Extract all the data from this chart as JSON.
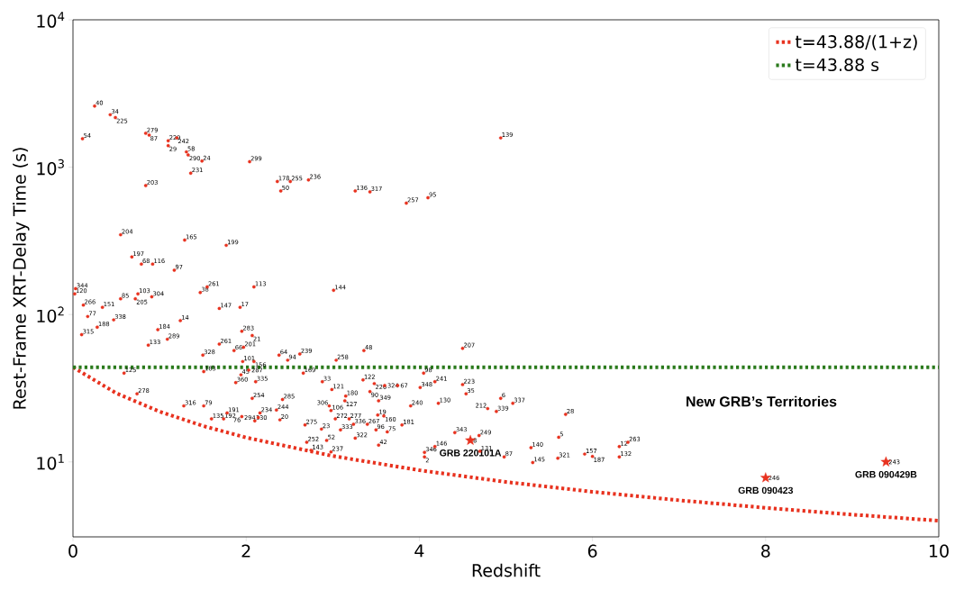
{
  "chart_data": {
    "type": "scatter",
    "xlabel": "Redshift",
    "ylabel": "Rest-Frame XRT-Delay Time (s)",
    "xlim": [
      0,
      10
    ],
    "ylim": [
      3.1,
      10000
    ],
    "log": "y",
    "xticks": [
      0,
      2,
      4,
      6,
      8,
      10
    ],
    "yticks": [
      {
        "value": 10,
        "label": "10$^{1}$"
      },
      {
        "value": 100,
        "label": "10$^{2}$"
      },
      {
        "value": 1000,
        "label": "10$^{3}$"
      },
      {
        "value": 10000,
        "label": "10$^{4}$"
      }
    ],
    "legend": "top right",
    "series": [
      {
        "type": "line",
        "name": "t=43.88/(1+z)",
        "color": "#e8321f",
        "line_style": "dotted",
        "marker": "none",
        "x": [
          0,
          0.5,
          1,
          1.5,
          2,
          3,
          4,
          5,
          6,
          7,
          8,
          9,
          10
        ],
        "values": [
          43.88,
          29.25,
          21.94,
          17.55,
          14.63,
          10.97,
          8.78,
          7.31,
          6.27,
          5.49,
          4.88,
          4.39,
          3.99
        ]
      },
      {
        "type": "line",
        "name": "t=43.88 s",
        "color": "#2a7a1c",
        "line_style": "dotted",
        "marker": "none",
        "x": [
          0,
          10
        ],
        "values": [
          43.88,
          43.88
        ]
      },
      {
        "color": "#e8321f",
        "marker": "circle",
        "x": [
          0.25,
          0.43,
          0.49,
          0.11,
          0.84,
          0.88,
          1.1,
          1.2,
          1.1,
          1.31,
          1.33,
          1.49,
          1.36,
          2.04,
          0.84,
          2.36,
          2.51,
          2.72,
          2.4,
          3.26,
          3.43,
          3.85,
          4.1,
          4.94,
          0.55,
          1.29,
          1.77,
          0.68,
          0.79,
          0.92,
          1.17,
          1.55,
          1.47,
          2.09,
          3.01,
          0.03,
          0.02,
          0.55,
          0.75,
          0.72,
          0.91,
          0.12,
          1.69,
          1.93,
          0.34,
          0.98,
          1.24,
          1.95,
          2.07,
          0.17,
          1.69,
          1.86,
          1.97,
          2.62,
          3.36,
          4.5,
          3.04,
          4.05,
          4.18,
          4.01,
          4.5,
          4.54,
          4.94,
          5.08,
          5.69,
          4.22,
          3.9,
          4.89,
          4.79,
          4.41,
          4.69,
          4.18,
          4.7,
          4.06,
          4.06,
          4.98,
          5.29,
          5.31,
          5.61,
          5.6,
          5.91,
          6.0,
          6.31,
          6.41,
          6.31,
          3.53,
          2.93,
          2.7,
          3.26,
          2.75,
          2.98,
          3.09,
          3.5,
          3.63,
          3.4,
          3.24,
          3.19,
          3.03,
          2.98,
          2.96,
          2.35,
          2.16,
          2.1,
          2.14,
          1.78,
          1.6,
          1.74,
          1.95,
          1.28,
          1.51,
          0.74,
          0.59,
          0.1,
          0.28,
          0.47,
          0.87,
          1.09,
          1.5,
          1.51,
          2.48,
          2.38,
          2.66,
          2.88,
          2.99,
          3.15,
          3.14,
          3.35,
          3.48,
          3.43,
          3.6,
          3.75,
          3.53,
          1.88,
          2.11,
          1.94,
          2.03,
          1.96,
          2.09,
          2.07,
          2.42,
          3.52,
          3.59,
          3.8,
          2.87,
          2.68,
          2.39
        ],
        "values": [
          2600,
          2270,
          2170,
          1560,
          1700,
          1650,
          1510,
          1580,
          1400,
          1270,
          1210,
          1100,
          910,
          1090,
          750,
          800,
          800,
          820,
          690,
          690,
          680,
          570,
          620,
          1580,
          348,
          320,
          295,
          246,
          220,
          220,
          200,
          154,
          141,
          154,
          146,
          150,
          138,
          128,
          138,
          128,
          132,
          116,
          110,
          112,
          112,
          79,
          91,
          77,
          72,
          97,
          63,
          57,
          60,
          54,
          57,
          59,
          49,
          40,
          35,
          32,
          33.5,
          29,
          27,
          25,
          21,
          25,
          24,
          22,
          23,
          15.8,
          15.1,
          12.7,
          11.8,
          11.6,
          10.8,
          10.8,
          12.5,
          9.9,
          14.7,
          10.6,
          11.3,
          10.9,
          12.7,
          13.6,
          10.8,
          13.0,
          14.0,
          13.6,
          14.5,
          12.0,
          11.7,
          16.5,
          16.5,
          16.0,
          18.0,
          18.0,
          19.6,
          19.6,
          22.3,
          24,
          22.5,
          21.5,
          19.0,
          20,
          21.5,
          19.6,
          19.6,
          20.3,
          24,
          24,
          29,
          40,
          73,
          82,
          92,
          62,
          68,
          53,
          41,
          49,
          53,
          40,
          35,
          31,
          28,
          26,
          36,
          34,
          30,
          33,
          33,
          26,
          34.5,
          35,
          39,
          42,
          48,
          48,
          27,
          26.5,
          20.8,
          20.5,
          17.8,
          16.7,
          17.8,
          19.3
        ]
      },
      {
        "color": "#e8321f",
        "marker": "star",
        "x": [
          4.59,
          8.0,
          9.39
        ],
        "values": [
          14.0,
          7.8,
          10.0
        ]
      }
    ],
    "annotations": [
      {
        "text": "40",
        "x": 0.25,
        "y": 2600
      },
      {
        "text": "34",
        "x": 0.43,
        "y": 2270
      },
      {
        "text": "225",
        "x": 0.49,
        "y": 2170
      },
      {
        "text": "54",
        "x": 0.11,
        "y": 1560
      },
      {
        "text": "279",
        "x": 0.84,
        "y": 1700
      },
      {
        "text": "87",
        "x": 0.88,
        "y": 1650
      },
      {
        "text": "229",
        "x": 1.1,
        "y": 1510
      },
      {
        "text": "242",
        "x": 1.2,
        "y": 1580
      },
      {
        "text": "29",
        "x": 1.1,
        "y": 1400
      },
      {
        "text": "58",
        "x": 1.31,
        "y": 1270
      },
      {
        "text": "290",
        "x": 1.33,
        "y": 1210
      },
      {
        "text": "24",
        "x": 1.49,
        "y": 1100
      },
      {
        "text": "231",
        "x": 1.36,
        "y": 910
      },
      {
        "text": "299",
        "x": 2.04,
        "y": 1090
      },
      {
        "text": "203",
        "x": 0.84,
        "y": 750
      },
      {
        "text": "178",
        "x": 2.36,
        "y": 800
      },
      {
        "text": "255",
        "x": 2.51,
        "y": 800
      },
      {
        "text": "236",
        "x": 2.72,
        "y": 820
      },
      {
        "text": "50",
        "x": 2.4,
        "y": 690
      },
      {
        "text": "136",
        "x": 3.26,
        "y": 690
      },
      {
        "text": "317",
        "x": 3.43,
        "y": 680
      },
      {
        "text": "257",
        "x": 3.85,
        "y": 570
      },
      {
        "text": "95",
        "x": 4.1,
        "y": 620
      },
      {
        "text": "139",
        "x": 4.94,
        "y": 1580
      },
      {
        "text": "204",
        "x": 0.55,
        "y": 348
      },
      {
        "text": "165",
        "x": 1.29,
        "y": 320
      },
      {
        "text": "199",
        "x": 1.77,
        "y": 295
      },
      {
        "text": "197",
        "x": 0.68,
        "y": 246
      },
      {
        "text": "68",
        "x": 0.79,
        "y": 220
      },
      {
        "text": "116",
        "x": 0.92,
        "y": 220
      },
      {
        "text": "97",
        "x": 1.17,
        "y": 200
      },
      {
        "text": "261",
        "x": 1.55,
        "y": 154
      },
      {
        "text": "38",
        "x": 1.47,
        "y": 141
      },
      {
        "text": "113",
        "x": 2.09,
        "y": 154
      },
      {
        "text": "144",
        "x": 3.01,
        "y": 146
      },
      {
        "text": "344",
        "x": 0.03,
        "y": 150
      },
      {
        "text": "120",
        "x": 0.02,
        "y": 138
      },
      {
        "text": "85",
        "x": 0.55,
        "y": 128
      },
      {
        "text": "103",
        "x": 0.75,
        "y": 138
      },
      {
        "text": "205",
        "x": 0.72,
        "y": 128
      },
      {
        "text": "304",
        "x": 0.91,
        "y": 132
      },
      {
        "text": "266",
        "x": 0.12,
        "y": 116
      },
      {
        "text": "147",
        "x": 1.69,
        "y": 110
      },
      {
        "text": "17",
        "x": 1.93,
        "y": 112
      },
      {
        "text": "151",
        "x": 0.34,
        "y": 112
      },
      {
        "text": "184",
        "x": 0.98,
        "y": 79
      },
      {
        "text": "14",
        "x": 1.24,
        "y": 91
      },
      {
        "text": "283",
        "x": 1.95,
        "y": 77
      },
      {
        "text": "21",
        "x": 2.07,
        "y": 72
      },
      {
        "text": "77",
        "x": 0.17,
        "y": 97
      },
      {
        "text": "261",
        "x": 1.69,
        "y": 63
      },
      {
        "text": "66",
        "x": 1.86,
        "y": 57
      },
      {
        "text": "201",
        "x": 1.97,
        "y": 60
      },
      {
        "text": "239",
        "x": 2.62,
        "y": 54
      },
      {
        "text": "48",
        "x": 3.36,
        "y": 57
      },
      {
        "text": "207",
        "x": 4.5,
        "y": 59
      },
      {
        "text": "258",
        "x": 3.04,
        "y": 49
      },
      {
        "text": "98",
        "x": 4.05,
        "y": 40
      },
      {
        "text": "241",
        "x": 4.18,
        "y": 35
      },
      {
        "text": "348",
        "x": 4.01,
        "y": 32
      },
      {
        "text": "223",
        "x": 4.5,
        "y": 33.5
      },
      {
        "text": "35",
        "x": 4.54,
        "y": 29
      },
      {
        "text": "6",
        "x": 4.94,
        "y": 27
      },
      {
        "text": "337",
        "x": 5.08,
        "y": 25
      },
      {
        "text": "28",
        "x": 5.69,
        "y": 21
      },
      {
        "text": "130",
        "x": 4.22,
        "y": 25
      },
      {
        "text": "240",
        "x": 3.9,
        "y": 24
      },
      {
        "text": "339",
        "x": 4.89,
        "y": 22
      },
      {
        "text": "212",
        "x": 4.79,
        "y": 23
      },
      {
        "text": "343",
        "x": 4.41,
        "y": 15.8
      },
      {
        "text": "249",
        "x": 4.69,
        "y": 15.1
      },
      {
        "text": "146",
        "x": 4.18,
        "y": 12.7
      },
      {
        "text": "131",
        "x": 4.7,
        "y": 11.8
      },
      {
        "text": "346",
        "x": 4.06,
        "y": 11.6
      },
      {
        "text": "2",
        "x": 4.06,
        "y": 10.8
      },
      {
        "text": "87",
        "x": 4.98,
        "y": 10.8
      },
      {
        "text": "140",
        "x": 5.29,
        "y": 12.5
      },
      {
        "text": "145",
        "x": 5.31,
        "y": 9.9
      },
      {
        "text": "5",
        "x": 5.61,
        "y": 14.7
      },
      {
        "text": "321",
        "x": 5.6,
        "y": 10.6
      },
      {
        "text": "157",
        "x": 5.91,
        "y": 11.3
      },
      {
        "text": "187",
        "x": 6.0,
        "y": 10.9
      },
      {
        "text": "12",
        "x": 6.31,
        "y": 12.7
      },
      {
        "text": "263",
        "x": 6.41,
        "y": 13.6
      },
      {
        "text": "132",
        "x": 6.31,
        "y": 10.8
      },
      {
        "text": "42",
        "x": 3.53,
        "y": 13.0
      },
      {
        "text": "52",
        "x": 2.93,
        "y": 14.0
      },
      {
        "text": "252",
        "x": 2.7,
        "y": 13.6
      },
      {
        "text": "322",
        "x": 3.26,
        "y": 14.5
      },
      {
        "text": "143",
        "x": 2.75,
        "y": 12.0
      },
      {
        "text": "237",
        "x": 2.98,
        "y": 11.7
      },
      {
        "text": "333",
        "x": 3.09,
        "y": 16.5
      },
      {
        "text": "96",
        "x": 3.5,
        "y": 16.5
      },
      {
        "text": "75",
        "x": 3.63,
        "y": 16.0
      },
      {
        "text": "267",
        "x": 3.4,
        "y": 18.0
      },
      {
        "text": "336",
        "x": 3.24,
        "y": 18.0
      },
      {
        "text": "277",
        "x": 3.19,
        "y": 19.6
      },
      {
        "text": "272",
        "x": 3.03,
        "y": 19.6
      },
      {
        "text": "106",
        "x": 2.98,
        "y": 22.3
      },
      {
        "text": "306",
        "x": 2.96,
        "y": 24
      },
      {
        "text": "244",
        "x": 2.35,
        "y": 22.5
      },
      {
        "text": "234",
        "x": 2.16,
        "y": 21.5
      },
      {
        "text": "330",
        "x": 2.1,
        "y": 19.0
      },
      {
        "text": "294",
        "x": 2.14,
        "y": 20
      },
      {
        "text": "191",
        "x": 1.78,
        "y": 21.5
      },
      {
        "text": "135",
        "x": 1.6,
        "y": 19.6
      },
      {
        "text": "192",
        "x": 1.74,
        "y": 19.6
      },
      {
        "text": "76",
        "x": 1.95,
        "y": 20.3
      },
      {
        "text": "316",
        "x": 1.28,
        "y": 24
      },
      {
        "text": "79",
        "x": 1.51,
        "y": 24
      },
      {
        "text": "278",
        "x": 0.74,
        "y": 29
      },
      {
        "text": "125",
        "x": 0.59,
        "y": 40
      },
      {
        "text": "315",
        "x": 0.1,
        "y": 73
      },
      {
        "text": "188",
        "x": 0.28,
        "y": 82
      },
      {
        "text": "338",
        "x": 0.47,
        "y": 92
      },
      {
        "text": "133",
        "x": 0.87,
        "y": 62
      },
      {
        "text": "289",
        "x": 1.09,
        "y": 68
      },
      {
        "text": "328",
        "x": 1.5,
        "y": 53
      },
      {
        "text": "183",
        "x": 1.51,
        "y": 41
      },
      {
        "text": "94",
        "x": 2.48,
        "y": 49
      },
      {
        "text": "64",
        "x": 2.38,
        "y": 53
      },
      {
        "text": "169",
        "x": 2.66,
        "y": 40
      },
      {
        "text": "33",
        "x": 2.88,
        "y": 35
      },
      {
        "text": "121",
        "x": 2.99,
        "y": 31
      },
      {
        "text": "180",
        "x": 3.15,
        "y": 28
      },
      {
        "text": "127",
        "x": 3.14,
        "y": 26
      },
      {
        "text": "122",
        "x": 3.35,
        "y": 36
      },
      {
        "text": "226",
        "x": 3.48,
        "y": 34
      },
      {
        "text": "90",
        "x": 3.43,
        "y": 30
      },
      {
        "text": "324",
        "x": 3.6,
        "y": 33
      },
      {
        "text": "67",
        "x": 3.75,
        "y": 33
      },
      {
        "text": "349",
        "x": 3.53,
        "y": 26
      },
      {
        "text": "360",
        "x": 1.88,
        "y": 34.5
      },
      {
        "text": "335",
        "x": 2.11,
        "y": 35
      },
      {
        "text": "45",
        "x": 1.94,
        "y": 39
      },
      {
        "text": "287",
        "x": 2.03,
        "y": 42
      },
      {
        "text": "101",
        "x": 1.96,
        "y": 48
      },
      {
        "text": "156",
        "x": 2.09,
        "y": 48
      },
      {
        "text": "254",
        "x": 2.07,
        "y": 27
      },
      {
        "text": "285",
        "x": 2.42,
        "y": 26.5
      },
      {
        "text": "19",
        "x": 3.52,
        "y": 20.8
      },
      {
        "text": "160",
        "x": 3.59,
        "y": 20.5
      },
      {
        "text": "181",
        "x": 3.8,
        "y": 17.8
      },
      {
        "text": "23",
        "x": 2.87,
        "y": 16.7
      },
      {
        "text": "275",
        "x": 2.68,
        "y": 17.8
      },
      {
        "text": "20",
        "x": 2.39,
        "y": 19.3
      },
      {
        "text": "8",
        "x": 4.59,
        "y": 14.0
      },
      {
        "text": "246",
        "x": 8.0,
        "y": 7.8
      },
      {
        "text": "243",
        "x": 9.39,
        "y": 10.0
      },
      {
        "text": "GRB 220101A",
        "x": 4.59,
        "y": 14.0
      },
      {
        "text": "GRB 090423",
        "x": 8.0,
        "y": 7.8
      },
      {
        "text": "GRB 090429B",
        "x": 9.39,
        "y": 10.0
      },
      "New GRB’s Territories"
    ]
  }
}
